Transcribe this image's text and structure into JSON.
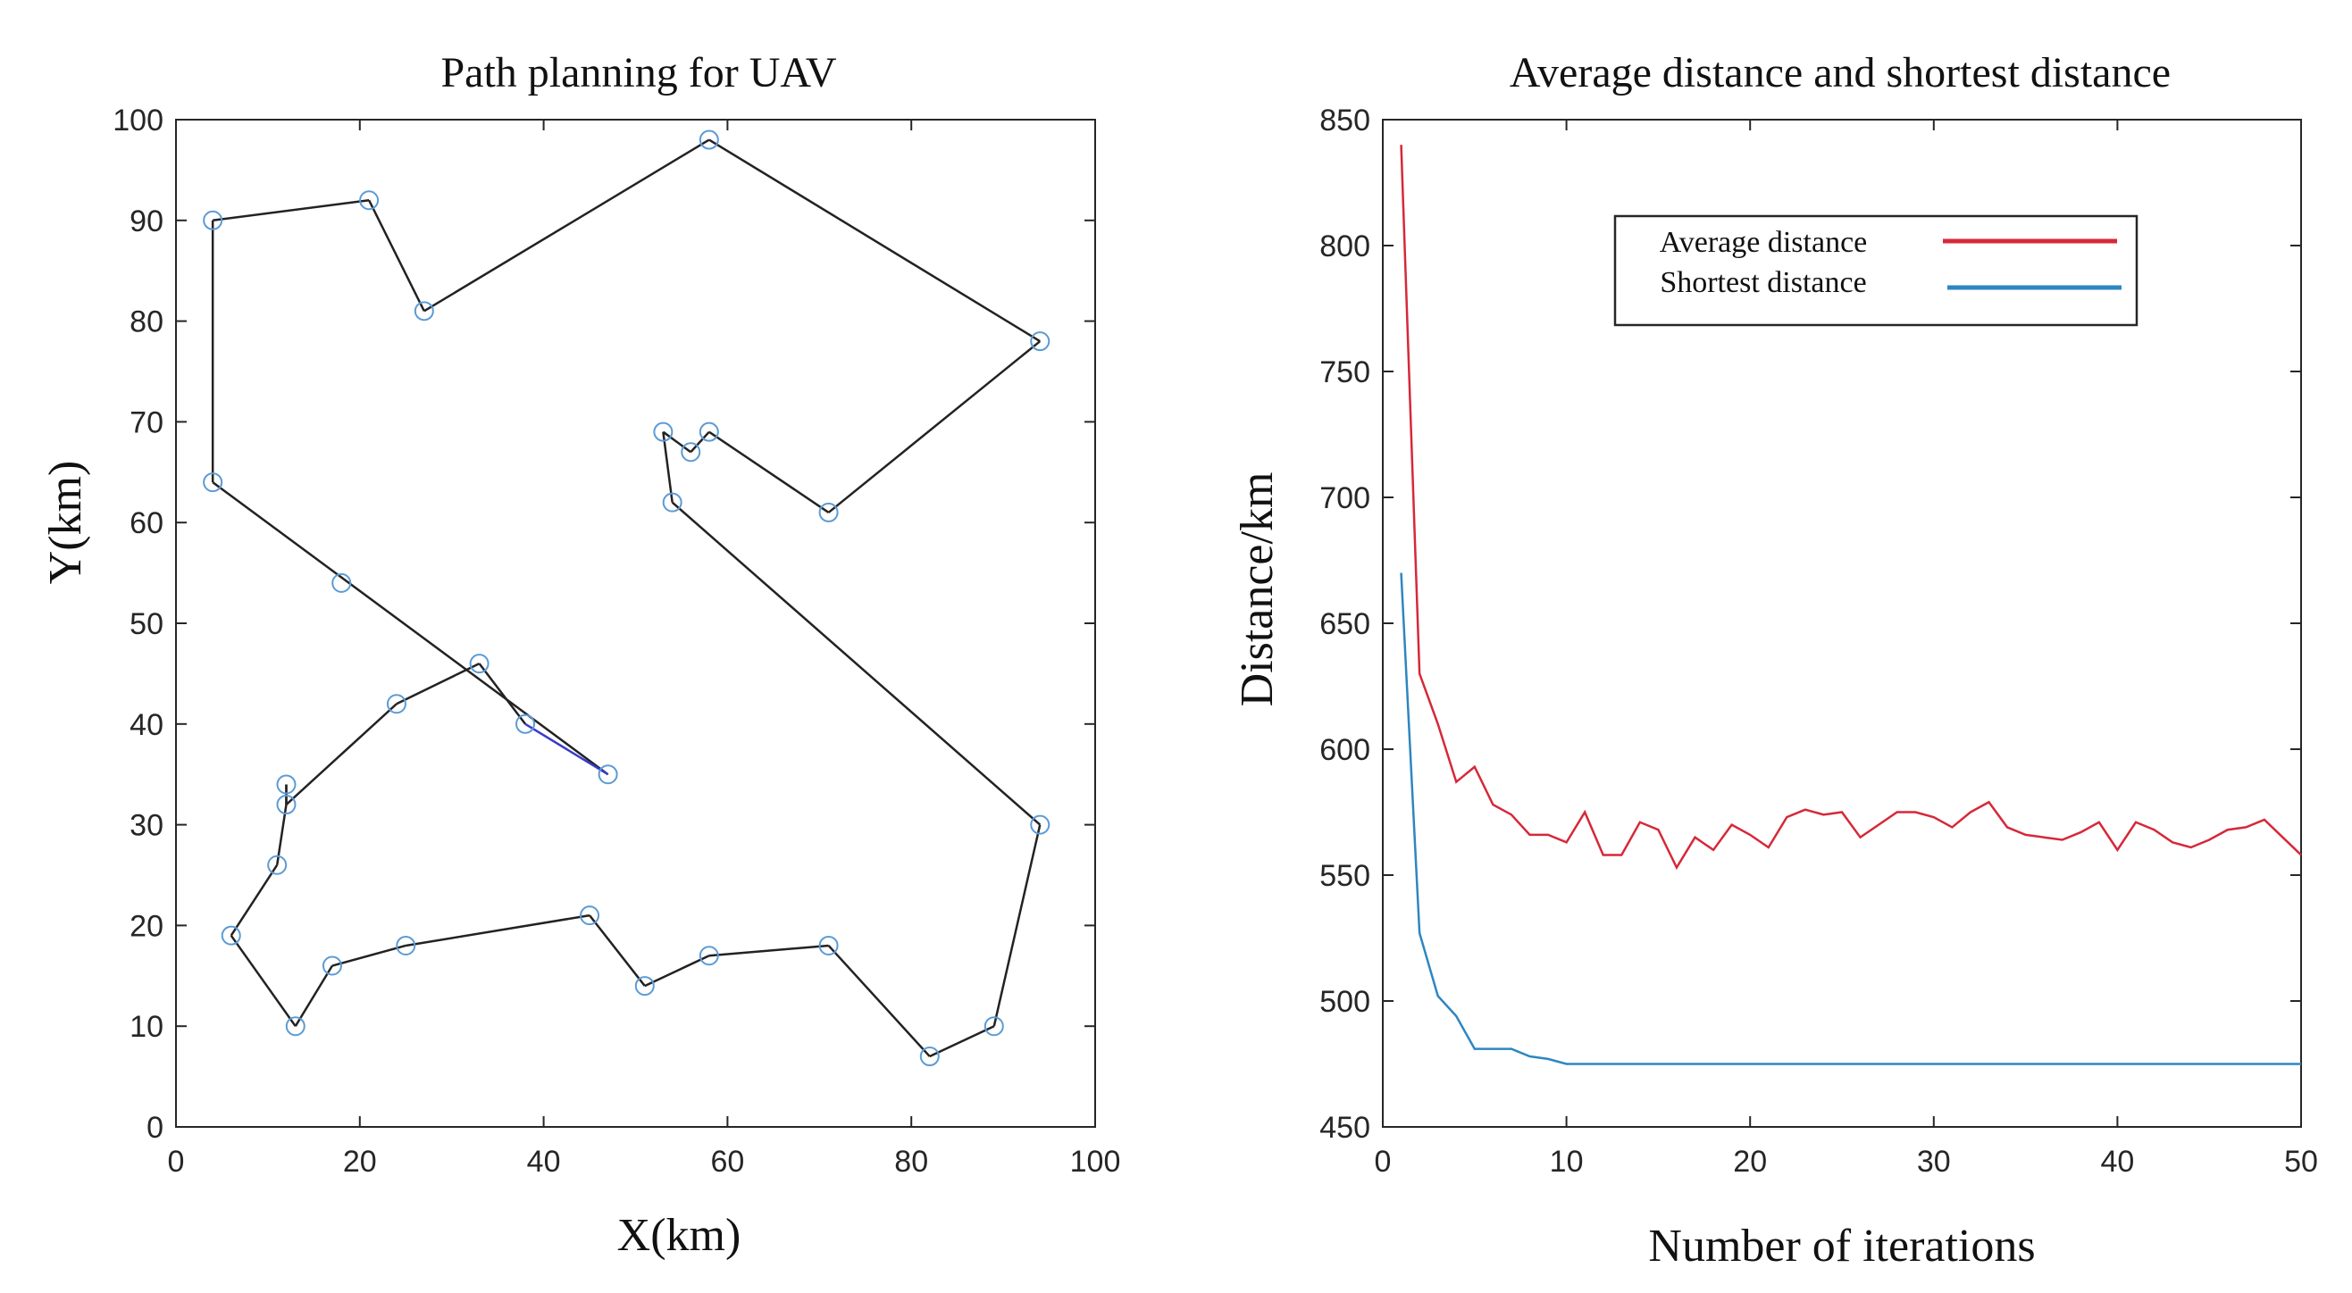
{
  "chart_data": [
    {
      "type": "line",
      "title": "Path planning for UAV",
      "xlabel": "X(km)",
      "ylabel": "Y(km)",
      "xlim": [
        0,
        100
      ],
      "ylim": [
        0,
        100
      ],
      "xticks": [
        0,
        20,
        40,
        60,
        80,
        100
      ],
      "yticks": [
        0,
        10,
        20,
        30,
        40,
        50,
        60,
        70,
        80,
        90,
        100
      ],
      "x_tick_labels": [
        "0",
        "20",
        "40",
        "60",
        "80",
        "100"
      ],
      "y_tick_labels": [
        "0",
        "10",
        "20",
        "30",
        "40",
        "50",
        "60",
        "70",
        "80",
        "90",
        "100"
      ],
      "grid": false,
      "path_color": "#222222",
      "marker_color": "#5b9bd5",
      "final_segment_color": "#3a3acc",
      "path": [
        [
          47,
          35
        ],
        [
          4,
          64
        ],
        [
          4,
          90
        ],
        [
          21,
          92
        ],
        [
          27,
          81
        ],
        [
          58,
          98
        ],
        [
          94,
          78
        ],
        [
          71,
          61
        ],
        [
          58,
          69
        ],
        [
          56,
          67
        ],
        [
          53,
          69
        ],
        [
          54,
          62
        ],
        [
          94,
          30
        ],
        [
          89,
          10
        ],
        [
          82,
          7
        ],
        [
          71,
          18
        ],
        [
          58,
          17
        ],
        [
          51,
          14
        ],
        [
          45,
          21
        ],
        [
          25,
          18
        ],
        [
          17,
          16
        ],
        [
          13,
          10
        ],
        [
          6,
          19
        ],
        [
          11,
          26
        ],
        [
          12,
          32
        ],
        [
          12,
          34
        ],
        [
          12,
          32
        ],
        [
          24,
          42
        ],
        [
          33,
          46
        ],
        [
          38,
          40
        ],
        [
          47,
          35
        ]
      ],
      "waypoints": [
        [
          4,
          90
        ],
        [
          21,
          92
        ],
        [
          27,
          81
        ],
        [
          58,
          98
        ],
        [
          94,
          78
        ],
        [
          71,
          61
        ],
        [
          58,
          69
        ],
        [
          56,
          67
        ],
        [
          53,
          69
        ],
        [
          54,
          62
        ],
        [
          4,
          64
        ],
        [
          18,
          54
        ],
        [
          33,
          46
        ],
        [
          24,
          42
        ],
        [
          38,
          40
        ],
        [
          47,
          35
        ],
        [
          12,
          34
        ],
        [
          12,
          32
        ],
        [
          11,
          26
        ],
        [
          6,
          19
        ],
        [
          17,
          16
        ],
        [
          13,
          10
        ],
        [
          25,
          18
        ],
        [
          45,
          21
        ],
        [
          51,
          14
        ],
        [
          58,
          17
        ],
        [
          71,
          18
        ],
        [
          82,
          7
        ],
        [
          89,
          10
        ],
        [
          94,
          30
        ]
      ]
    },
    {
      "type": "line",
      "title": "Average distance and shortest distance",
      "xlabel": "Number of iterations",
      "ylabel": "Distance/km",
      "xlim": [
        0,
        50
      ],
      "ylim": [
        450,
        850
      ],
      "xticks": [
        0,
        10,
        20,
        30,
        40,
        50
      ],
      "yticks": [
        450,
        500,
        550,
        600,
        650,
        700,
        750,
        800,
        850
      ],
      "x_tick_labels": [
        "0",
        "10",
        "20",
        "30",
        "40",
        "50"
      ],
      "y_tick_labels": [
        "450",
        "500",
        "550",
        "600",
        "650",
        "700",
        "750",
        "800",
        "850"
      ],
      "grid": false,
      "legend_position": "top-right",
      "x": [
        1,
        2,
        3,
        4,
        5,
        6,
        7,
        8,
        9,
        10,
        11,
        12,
        13,
        14,
        15,
        16,
        17,
        18,
        19,
        20,
        21,
        22,
        23,
        24,
        25,
        26,
        27,
        28,
        29,
        30,
        31,
        32,
        33,
        34,
        35,
        36,
        37,
        38,
        39,
        40,
        41,
        42,
        43,
        44,
        45,
        46,
        47,
        48,
        49,
        50
      ],
      "series": [
        {
          "name": "Average distance",
          "color": "#d62839",
          "values": [
            840,
            630,
            610,
            587,
            593,
            578,
            574,
            566,
            566,
            563,
            575,
            558,
            558,
            571,
            568,
            553,
            565,
            560,
            570,
            566,
            561,
            573,
            576,
            574,
            575,
            565,
            570,
            575,
            575,
            573,
            569,
            575,
            579,
            569,
            566,
            565,
            564,
            567,
            571,
            560,
            571,
            568,
            563,
            561,
            564,
            568,
            569,
            572,
            565,
            558
          ]
        },
        {
          "name": "Shortest distance",
          "color": "#2e86c1",
          "values": [
            670,
            527,
            502,
            494,
            481,
            481,
            481,
            478,
            477,
            475,
            475,
            475,
            475,
            475,
            475,
            475,
            475,
            475,
            475,
            475,
            475,
            475,
            475,
            475,
            475,
            475,
            475,
            475,
            475,
            475,
            475,
            475,
            475,
            475,
            475,
            475,
            475,
            475,
            475,
            475,
            475,
            475,
            475,
            475,
            475,
            475,
            475,
            475,
            475,
            475
          ]
        }
      ]
    }
  ]
}
